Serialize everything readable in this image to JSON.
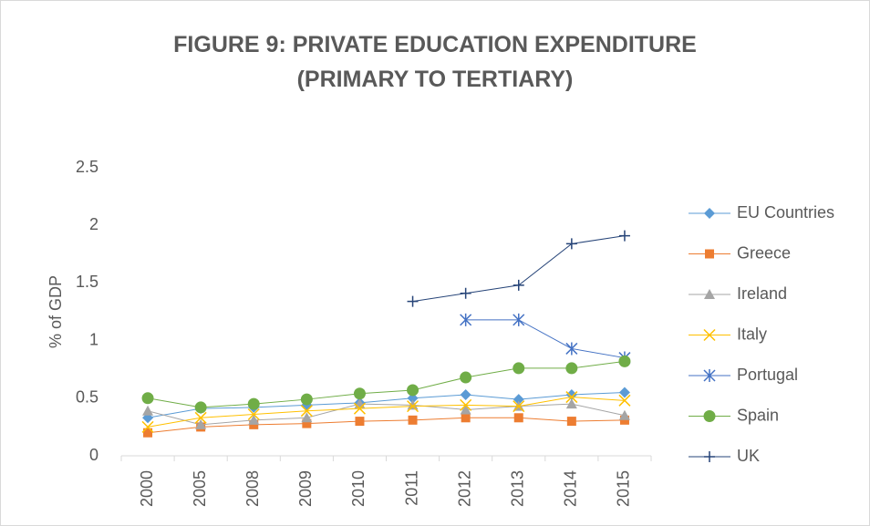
{
  "chart_data": {
    "type": "line",
    "title": "FIGURE 9: PRIVATE EDUCATION EXPENDITURE (PRIMARY TO TERTIARY)",
    "y_label": "% of GDP",
    "categories": [
      "2000",
      "2005",
      "2008",
      "2009",
      "2010",
      "2011",
      "2012",
      "2013",
      "2014",
      "2015"
    ],
    "series": [
      {
        "name": "EU Countries",
        "color": "#5b9bd5",
        "marker": "diamond",
        "values": [
          0.33,
          0.41,
          0.42,
          0.44,
          0.46,
          0.5,
          0.53,
          0.49,
          0.53,
          0.55
        ]
      },
      {
        "name": "Greece",
        "color": "#ed7d31",
        "marker": "square",
        "values": [
          0.2,
          0.25,
          0.27,
          0.28,
          0.3,
          0.31,
          0.33,
          0.33,
          0.3,
          0.31
        ]
      },
      {
        "name": "Ireland",
        "color": "#a5a5a5",
        "marker": "triangle",
        "values": [
          0.39,
          0.27,
          0.31,
          0.33,
          0.45,
          0.44,
          0.4,
          0.43,
          0.45,
          0.35
        ]
      },
      {
        "name": "Italy",
        "color": "#ffc000",
        "marker": "x",
        "values": [
          0.25,
          0.33,
          0.36,
          0.39,
          0.41,
          0.43,
          0.44,
          0.43,
          0.51,
          0.48
        ]
      },
      {
        "name": "Portugal",
        "color": "#4472c4",
        "marker": "star",
        "values": [
          null,
          null,
          null,
          null,
          null,
          null,
          1.18,
          1.18,
          0.93,
          0.85
        ]
      },
      {
        "name": "Spain",
        "color": "#70ad47",
        "marker": "circle",
        "values": [
          0.5,
          0.42,
          0.45,
          0.49,
          0.54,
          0.57,
          0.68,
          0.76,
          0.76,
          0.82
        ]
      },
      {
        "name": "UK",
        "color": "#264478",
        "marker": "plus",
        "values": [
          null,
          null,
          null,
          null,
          null,
          1.34,
          1.41,
          1.48,
          1.84,
          1.91
        ]
      }
    ],
    "ylim": [
      0,
      2.5
    ],
    "yticks": [
      0,
      0.5,
      1,
      1.5,
      2,
      2.5
    ],
    "grid": false,
    "legend": "right"
  }
}
